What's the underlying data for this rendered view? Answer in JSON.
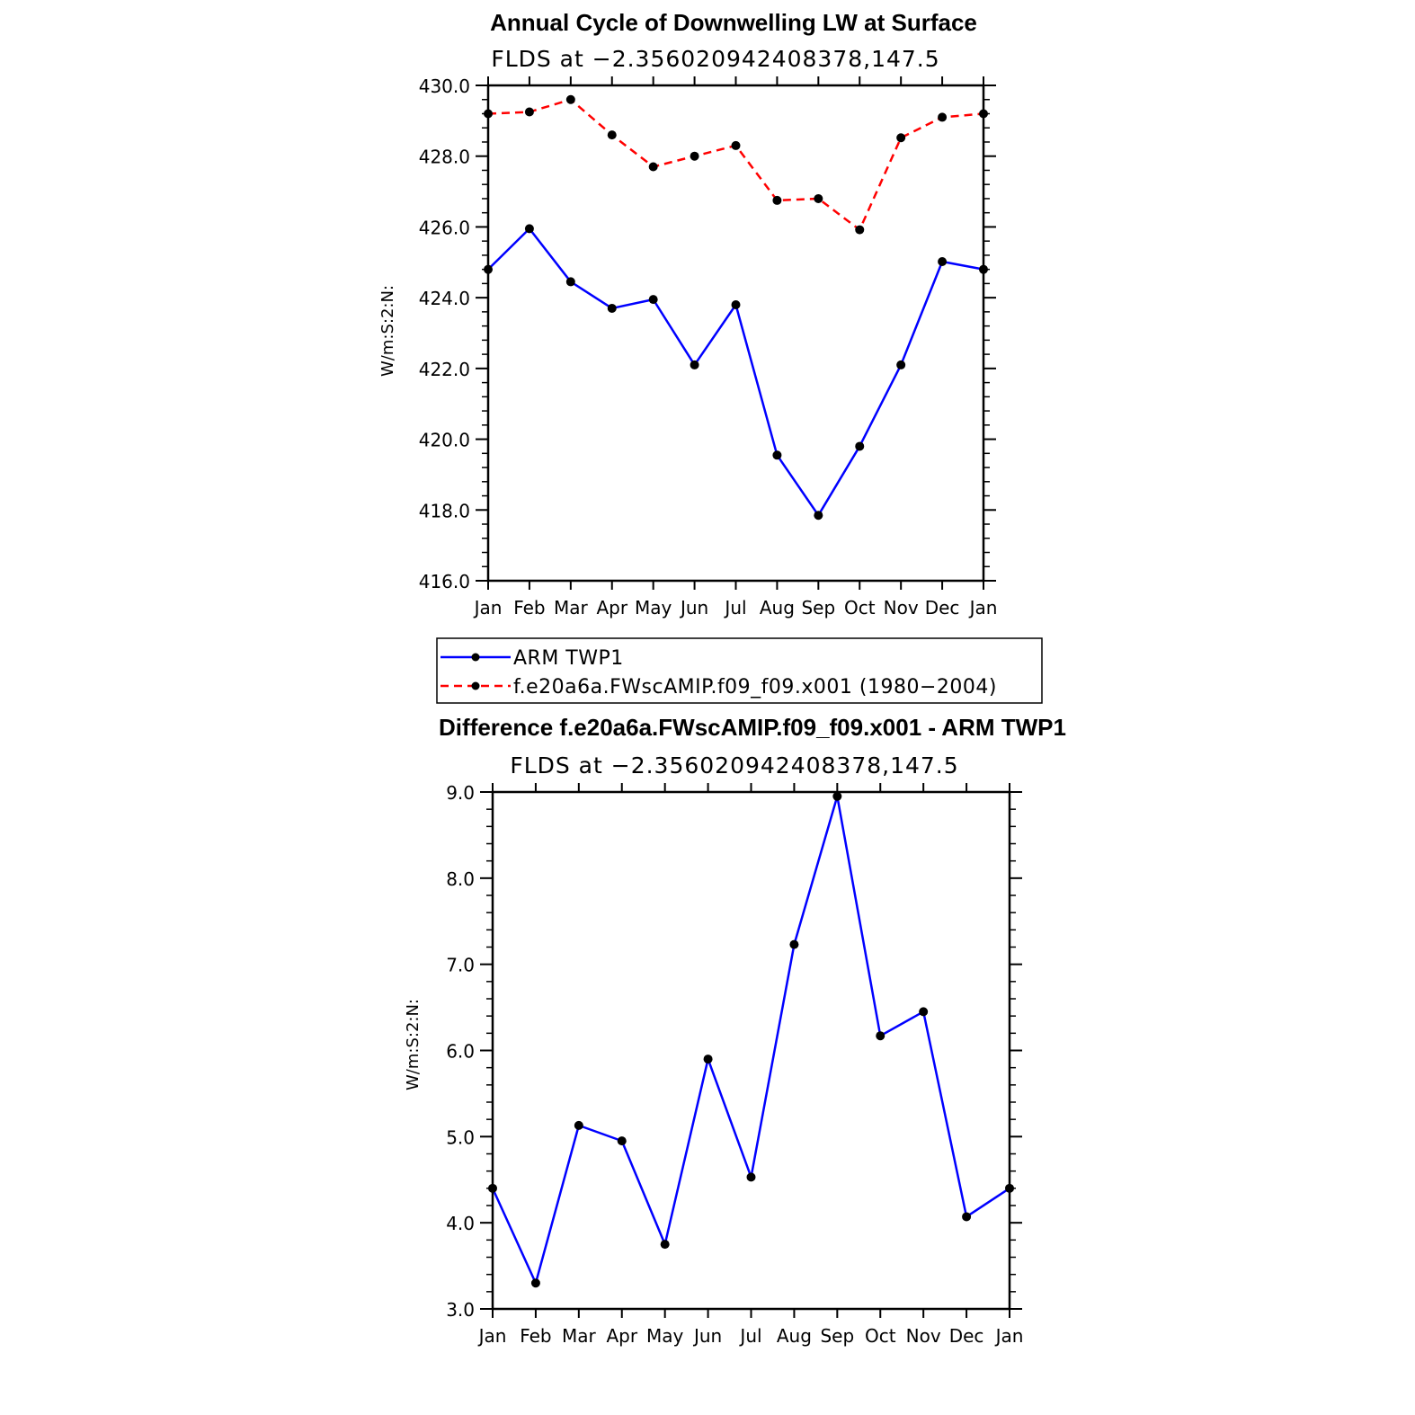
{
  "chart_data": [
    {
      "type": "line",
      "title": "Annual Cycle of Downwelling LW at Surface",
      "subtitle": "FLDS at −2.356020942408378,147.5",
      "xlabel": "",
      "ylabel": "W/m:S:2:N:",
      "categories": [
        "Jan",
        "Feb",
        "Mar",
        "Apr",
        "May",
        "Jun",
        "Jul",
        "Aug",
        "Sep",
        "Oct",
        "Nov",
        "Dec",
        "Jan"
      ],
      "ylim": [
        416.0,
        430.0
      ],
      "yticks": [
        "416.0",
        "418.0",
        "420.0",
        "422.0",
        "424.0",
        "426.0",
        "428.0",
        "430.0"
      ],
      "series": [
        {
          "name": "ARM TWP1",
          "color": "#0000ff",
          "dash": "solid",
          "values": [
            424.8,
            425.95,
            424.45,
            423.7,
            423.95,
            422.1,
            423.8,
            419.55,
            417.85,
            419.8,
            422.1,
            425.02,
            424.8
          ]
        },
        {
          "name": "f.e20a6a.FWscAMIP.f09_f09.x001 (1980−2004)",
          "color": "#ff0000",
          "dash": "dashed",
          "values": [
            429.2,
            429.25,
            429.6,
            428.6,
            427.7,
            428.0,
            428.3,
            426.75,
            426.8,
            425.92,
            428.52,
            429.1,
            429.2
          ]
        }
      ],
      "legend": "bottom"
    },
    {
      "type": "line",
      "title": "Difference f.e20a6a.FWscAMIP.f09_f09.x001 - ARM TWP1",
      "subtitle": "FLDS at −2.356020942408378,147.5",
      "xlabel": "",
      "ylabel": "W/m:S:2:N:",
      "categories": [
        "Jan",
        "Feb",
        "Mar",
        "Apr",
        "May",
        "Jun",
        "Jul",
        "Aug",
        "Sep",
        "Oct",
        "Nov",
        "Dec",
        "Jan"
      ],
      "ylim": [
        3.0,
        9.0
      ],
      "yticks": [
        "3.0",
        "4.0",
        "5.0",
        "6.0",
        "7.0",
        "8.0",
        "9.0"
      ],
      "series": [
        {
          "name": "Difference",
          "color": "#0000ff",
          "dash": "solid",
          "values": [
            4.4,
            3.3,
            5.13,
            4.95,
            3.75,
            5.9,
            4.53,
            7.23,
            8.95,
            6.17,
            6.45,
            4.07,
            4.4
          ]
        }
      ]
    }
  ]
}
